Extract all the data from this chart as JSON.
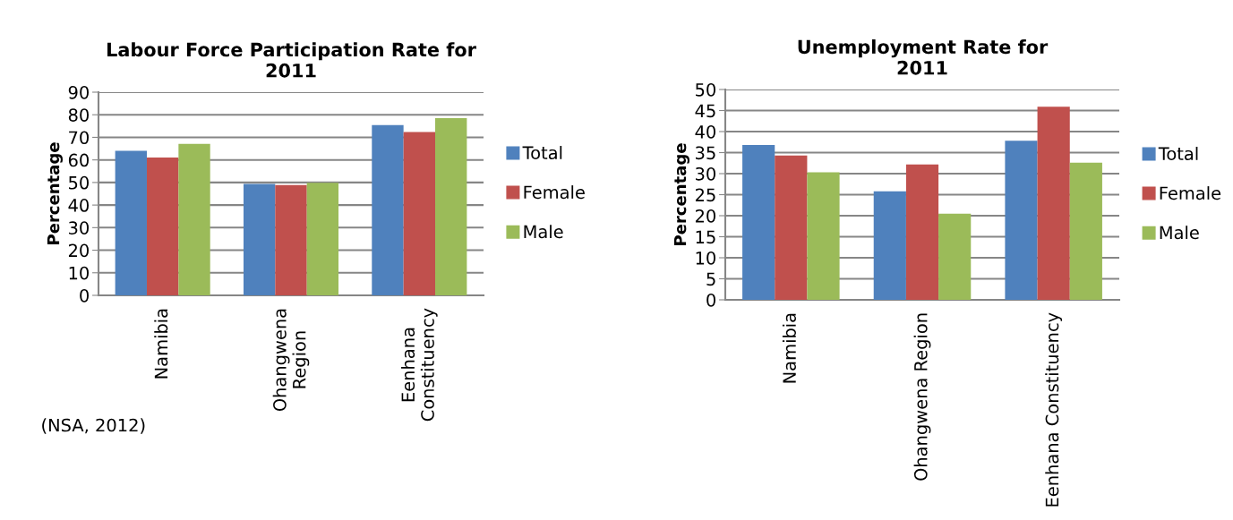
{
  "chart_data": [
    {
      "type": "bar",
      "title": "Labour Force Participation Rate for\n2011",
      "ylabel": "Percentage",
      "categories": [
        "Namibia",
        "Ohangwena\nRegion",
        "Eenhana\nConstituency"
      ],
      "series": [
        {
          "name": "Total",
          "color": "#4f81bd",
          "values": [
            64,
            49.4,
            75.4
          ]
        },
        {
          "name": "Female",
          "color": "#c0504d",
          "values": [
            61.1,
            48.9,
            72.4
          ]
        },
        {
          "name": "Male",
          "color": "#9bbb59",
          "values": [
            67.1,
            49.9,
            78.5
          ]
        }
      ],
      "ylim": [
        0,
        90
      ],
      "yticks": [
        0,
        10,
        20,
        30,
        40,
        50,
        60,
        70,
        80,
        90
      ],
      "grid": "y",
      "legend": "right",
      "annotations": [
        "(NSA, 2012)"
      ]
    },
    {
      "type": "bar",
      "title": "Unemployment Rate for\n2011",
      "ylabel": "Percentage",
      "categories": [
        "Namibia",
        "Ohangwena Region",
        "Eenhana Constituency"
      ],
      "series": [
        {
          "name": "Total",
          "color": "#4f81bd",
          "values": [
            36.8,
            25.8,
            37.8
          ]
        },
        {
          "name": "Female",
          "color": "#c0504d",
          "values": [
            34.3,
            32.2,
            45.9
          ]
        },
        {
          "name": "Male",
          "color": "#9bbb59",
          "values": [
            30.3,
            20.5,
            32.6
          ]
        }
      ],
      "ylim": [
        0,
        50
      ],
      "yticks": [
        0,
        5,
        10,
        15,
        20,
        25,
        30,
        35,
        40,
        45,
        50
      ],
      "grid": "y",
      "legend": "right"
    }
  ]
}
